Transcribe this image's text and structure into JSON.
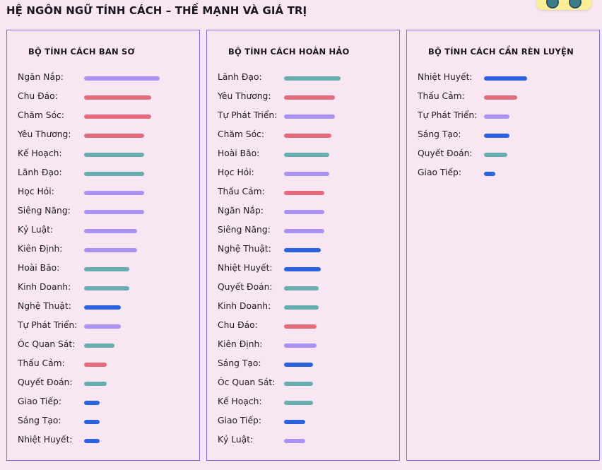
{
  "page": {
    "title": "HỆ NGÔN NGỮ TÍNH CÁCH – THẾ MẠNH VÀ GIÁ TRỊ"
  },
  "colors": {
    "purple": "#a992f1",
    "red": "#e46b7b",
    "teal": "#69aeaf",
    "blue": "#2b62e0"
  },
  "panels": [
    {
      "title": "BỘ TÍNH CÁCH BAN SƠ",
      "items": [
        {
          "label": "Ngăn Nắp:",
          "color": "purple",
          "value": 1.0
        },
        {
          "label": "Chu Đáo:",
          "color": "red",
          "value": 0.89
        },
        {
          "label": "Chăm Sóc:",
          "color": "red",
          "value": 0.89
        },
        {
          "label": "Yêu Thương:",
          "color": "red",
          "value": 0.79
        },
        {
          "label": "Kế Hoạch:",
          "color": "teal",
          "value": 0.79
        },
        {
          "label": "Lãnh Đạo:",
          "color": "teal",
          "value": 0.79
        },
        {
          "label": "Học Hỏi:",
          "color": "purple",
          "value": 0.79
        },
        {
          "label": "Siêng Năng:",
          "color": "purple",
          "value": 0.79
        },
        {
          "label": "Kỷ Luật:",
          "color": "purple",
          "value": 0.7
        },
        {
          "label": "Kiên Định:",
          "color": "purple",
          "value": 0.7
        },
        {
          "label": "Hoài Bão:",
          "color": "teal",
          "value": 0.6
        },
        {
          "label": "Kinh Doanh:",
          "color": "teal",
          "value": 0.6
        },
        {
          "label": "Nghệ Thuật:",
          "color": "blue",
          "value": 0.49
        },
        {
          "label": "Tự Phát Triển:",
          "color": "purple",
          "value": 0.49
        },
        {
          "label": "Óc Quan Sát:",
          "color": "teal",
          "value": 0.4
        },
        {
          "label": "Thấu Cảm:",
          "color": "red",
          "value": 0.3
        },
        {
          "label": "Quyết Đoán:",
          "color": "teal",
          "value": 0.3
        },
        {
          "label": "Giao Tiếp:",
          "color": "blue",
          "value": 0.21
        },
        {
          "label": "Sáng Tạo:",
          "color": "blue",
          "value": 0.21
        },
        {
          "label": "Nhiệt Huyết:",
          "color": "blue",
          "value": 0.21
        }
      ]
    },
    {
      "title": "BỘ TÍNH CÁCH HOÀN HẢO",
      "items": [
        {
          "label": "Lãnh Đạo:",
          "color": "teal",
          "value": 0.75
        },
        {
          "label": "Yêu Thương:",
          "color": "red",
          "value": 0.67
        },
        {
          "label": "Tự Phát Triển:",
          "color": "purple",
          "value": 0.67
        },
        {
          "label": "Chăm Sóc:",
          "color": "red",
          "value": 0.63
        },
        {
          "label": "Hoài Bão:",
          "color": "teal",
          "value": 0.6
        },
        {
          "label": "Học Hỏi:",
          "color": "purple",
          "value": 0.6
        },
        {
          "label": "Thấu Cảm:",
          "color": "red",
          "value": 0.53
        },
        {
          "label": "Ngăn Nắp:",
          "color": "purple",
          "value": 0.53
        },
        {
          "label": "Siêng Năng:",
          "color": "purple",
          "value": 0.53
        },
        {
          "label": "Nghệ Thuật:",
          "color": "blue",
          "value": 0.49
        },
        {
          "label": "Nhiệt Huyết:",
          "color": "blue",
          "value": 0.49
        },
        {
          "label": "Quyết Đoán:",
          "color": "teal",
          "value": 0.46
        },
        {
          "label": "Kinh Doanh:",
          "color": "teal",
          "value": 0.46
        },
        {
          "label": "Chu Đáo:",
          "color": "red",
          "value": 0.43
        },
        {
          "label": "Kiên Định:",
          "color": "purple",
          "value": 0.43
        },
        {
          "label": "Sáng Tạo:",
          "color": "blue",
          "value": 0.38
        },
        {
          "label": "Óc Quan Sát:",
          "color": "teal",
          "value": 0.38
        },
        {
          "label": "Kế Hoạch:",
          "color": "teal",
          "value": 0.38
        },
        {
          "label": "Giao Tiếp:",
          "color": "blue",
          "value": 0.28
        },
        {
          "label": "Kỷ Luật:",
          "color": "purple",
          "value": 0.28
        }
      ]
    },
    {
      "title": "BỘ TÍNH CÁCH CẦN RÈN LUYỆN",
      "items": [
        {
          "label": "Nhiệt Huyết:",
          "color": "blue",
          "value": 0.57
        },
        {
          "label": "Thấu Cảm:",
          "color": "red",
          "value": 0.44
        },
        {
          "label": "Tự Phát Triển:",
          "color": "purple",
          "value": 0.34
        },
        {
          "label": "Sáng Tạo:",
          "color": "blue",
          "value": 0.34
        },
        {
          "label": "Quyết Đoán:",
          "color": "teal",
          "value": 0.31
        },
        {
          "label": "Giao Tiếp:",
          "color": "blue",
          "value": 0.15
        }
      ]
    }
  ]
}
